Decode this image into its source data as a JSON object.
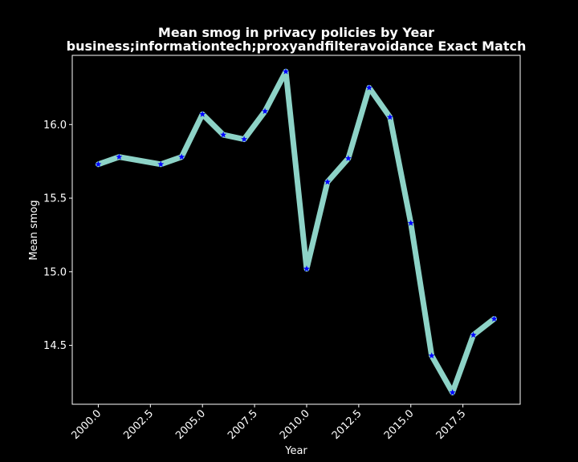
{
  "colors": {
    "background": "#000000",
    "axes": "#ffffff",
    "line": "#8dd3c7",
    "marker": "#0000ff"
  },
  "chart_data": {
    "type": "line",
    "title_line1": "Mean smog in privacy policies by Year",
    "title_line2": "business;informationtech;proxyandfilteravoidance Exact Match",
    "xlabel": "Year",
    "ylabel": "Mean smog",
    "xlim": [
      1998.75,
      2020.25
    ],
    "ylim": [
      14.1,
      16.47
    ],
    "xticks": [
      2000.0,
      2002.5,
      2005.0,
      2007.5,
      2010.0,
      2012.5,
      2015.0,
      2017.5
    ],
    "xtick_labels": [
      "2000.0",
      "2002.5",
      "2005.0",
      "2007.5",
      "2010.0",
      "2012.5",
      "2015.0",
      "2017.5"
    ],
    "yticks": [
      14.5,
      15.0,
      15.5,
      16.0
    ],
    "ytick_labels": [
      "14.5",
      "15.0",
      "15.5",
      "16.0"
    ],
    "marker": "star",
    "grid": false,
    "series": [
      {
        "x": [
          2000,
          2001,
          2003,
          2004,
          2005,
          2006,
          2007,
          2008,
          2009,
          2010,
          2011,
          2012,
          2013,
          2014,
          2015,
          2016,
          2017,
          2018,
          2019
        ],
        "y": [
          15.73,
          15.78,
          15.73,
          15.78,
          16.07,
          15.93,
          15.9,
          16.09,
          16.36,
          15.02,
          15.61,
          15.77,
          16.25,
          16.05,
          15.33,
          14.43,
          14.18,
          14.57,
          14.68
        ]
      }
    ]
  }
}
